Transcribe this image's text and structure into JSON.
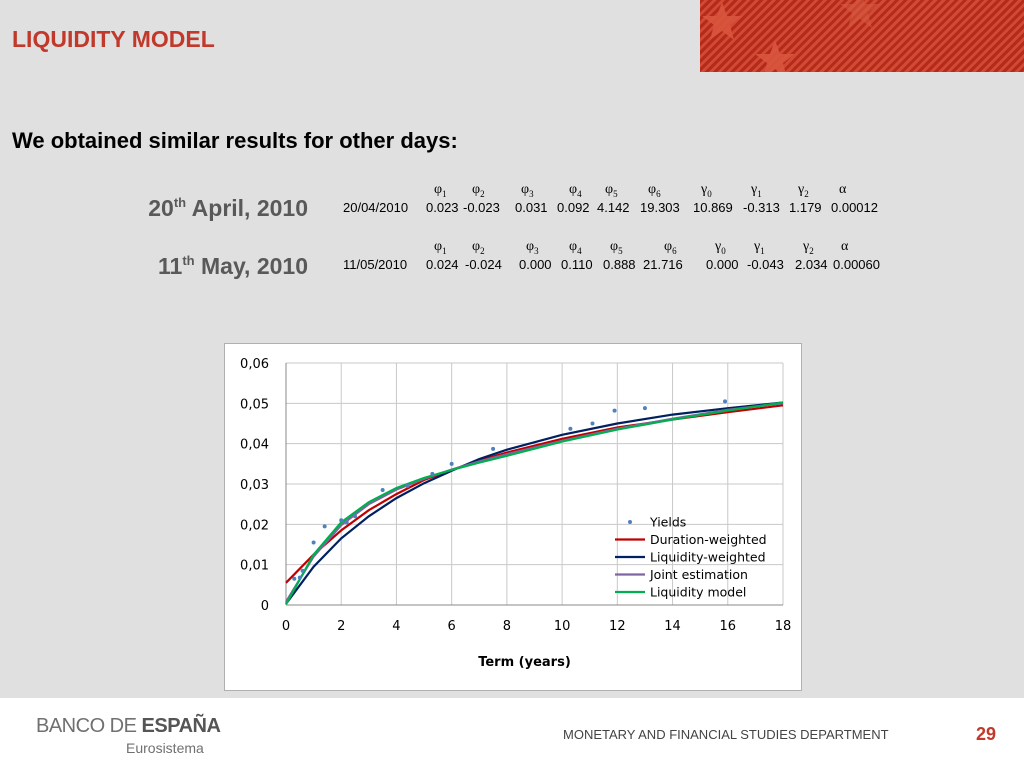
{
  "slide": {
    "title": "LIQUIDITY MODEL",
    "subtitle": "We obtained similar results for other days:",
    "colors": {
      "title": "#c0392b",
      "background": "#e0e0e0",
      "page_number": "#c0392b"
    }
  },
  "params": {
    "headers": [
      {
        "sym": "φ",
        "sub": "1"
      },
      {
        "sym": "φ",
        "sub": "2"
      },
      {
        "sym": "φ",
        "sub": "3"
      },
      {
        "sym": "φ",
        "sub": "4"
      },
      {
        "sym": "φ",
        "sub": "5"
      },
      {
        "sym": "φ",
        "sub": "6"
      },
      {
        "sym": "γ",
        "sub": "0"
      },
      {
        "sym": "γ",
        "sub": "1"
      },
      {
        "sym": "γ",
        "sub": "2"
      },
      {
        "sym": "α",
        "sub": ""
      }
    ],
    "days": [
      {
        "label_day": "20",
        "label_sup": "th",
        "label_rest": "April, 2010",
        "date": "20/04/2010",
        "values": [
          "0.023",
          "-0.023",
          "0.031",
          "0.092",
          "4.142",
          "19.303",
          "10.869",
          "-0.313",
          "1.179",
          "0.00012"
        ]
      },
      {
        "label_day": "11",
        "label_sup": "th",
        "label_rest": "May, 2010",
        "date": "11/05/2010",
        "values": [
          "0.024",
          "-0.024",
          "0.000",
          "0.110",
          "0.888",
          "21.716",
          "0.000",
          "-0.043",
          "2.034",
          "0.00060"
        ]
      }
    ]
  },
  "chart_data": {
    "type": "line",
    "title": "",
    "xlabel": "Term (years)",
    "ylabel": "",
    "xlim": [
      0,
      18
    ],
    "ylim": [
      0,
      0.06
    ],
    "x_ticks": [
      "0",
      "2",
      "4",
      "6",
      "8",
      "10",
      "12",
      "14",
      "16",
      "18"
    ],
    "y_ticks": [
      "0",
      "0,01",
      "0,02",
      "0,03",
      "0,04",
      "0,05",
      "0,06"
    ],
    "grid": true,
    "legend_position": "bottom-right",
    "scatter": {
      "name": "Yields",
      "color": "#4f81bd",
      "x": [
        0.3,
        0.5,
        0.6,
        1.0,
        1.4,
        2.0,
        2.2,
        2.5,
        3.5,
        4.4,
        5.3,
        6.0,
        7.5,
        10.3,
        11.1,
        11.9,
        13.0,
        15.9
      ],
      "y": [
        0.0065,
        0.0068,
        0.0085,
        0.0155,
        0.0195,
        0.021,
        0.0205,
        0.022,
        0.0285,
        0.0295,
        0.0325,
        0.035,
        0.0387,
        0.0437,
        0.045,
        0.0482,
        0.0488,
        0.0505
      ]
    },
    "series": [
      {
        "name": "Duration-weighted",
        "color": "#c00000",
        "x": [
          0,
          1,
          2,
          3,
          4,
          5,
          6,
          7,
          8,
          10,
          12,
          14,
          16,
          18
        ],
        "y": [
          0.0055,
          0.0125,
          0.0185,
          0.0235,
          0.0275,
          0.031,
          0.0335,
          0.0358,
          0.0378,
          0.0412,
          0.044,
          0.046,
          0.0478,
          0.0495
        ]
      },
      {
        "name": "Liquidity-weighted",
        "color": "#002060",
        "x": [
          0,
          1,
          2,
          3,
          4,
          5,
          6,
          7,
          8,
          10,
          12,
          14,
          16,
          18
        ],
        "y": [
          0.0003,
          0.0095,
          0.0165,
          0.022,
          0.0265,
          0.0302,
          0.0333,
          0.0362,
          0.0385,
          0.0422,
          0.045,
          0.0472,
          0.0488,
          0.0502
        ]
      },
      {
        "name": "Joint estimation",
        "color": "#8064a2",
        "x": [
          0,
          1,
          2,
          3,
          4,
          5,
          6,
          7,
          8,
          10,
          12,
          14,
          16,
          18
        ],
        "y": [
          0.0008,
          0.012,
          0.0198,
          0.025,
          0.0286,
          0.0313,
          0.0336,
          0.0356,
          0.0374,
          0.0407,
          0.0437,
          0.0462,
          0.0484,
          0.05
        ]
      },
      {
        "name": "Liquidity model",
        "color": "#00b050",
        "x": [
          0,
          1,
          2,
          3,
          4,
          5,
          6,
          7,
          8,
          10,
          12,
          14,
          16,
          18
        ],
        "y": [
          0.0002,
          0.0125,
          0.0205,
          0.0255,
          0.029,
          0.0315,
          0.0335,
          0.0353,
          0.037,
          0.0405,
          0.0435,
          0.046,
          0.0482,
          0.0502
        ]
      }
    ]
  },
  "footer": {
    "logo_part1": "BANCO DE ",
    "logo_part2": "ESPAÑA",
    "logo_sub": "Eurosistema",
    "department": "MONETARY AND FINANCIAL STUDIES DEPARTMENT",
    "page_number": "29"
  }
}
